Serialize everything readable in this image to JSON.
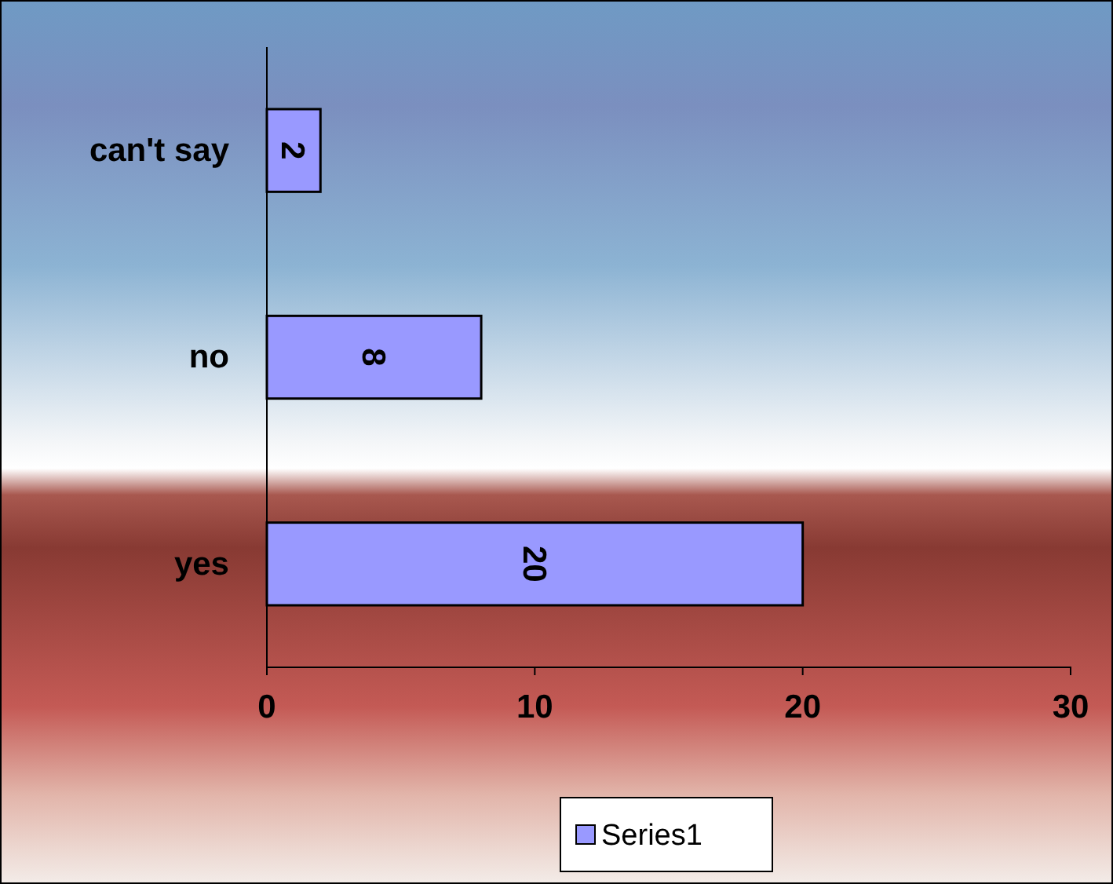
{
  "chart_data": {
    "type": "bar",
    "orientation": "horizontal",
    "categories": [
      "can't say",
      "no",
      "yes"
    ],
    "series": [
      {
        "name": "Series1",
        "color": "#9999ff",
        "values": [
          2,
          8,
          20
        ]
      }
    ],
    "xlim": [
      0,
      30
    ],
    "xticks": [
      0,
      10,
      20,
      30
    ],
    "data_labels": true,
    "legend": "bottom",
    "grid": false
  }
}
